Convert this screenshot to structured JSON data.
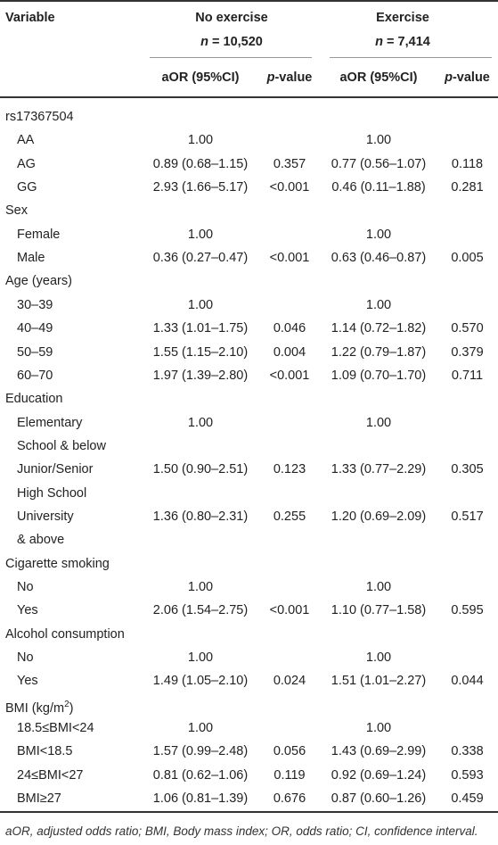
{
  "header": {
    "variable": "Variable",
    "groups": [
      {
        "name": "No exercise",
        "n_prefix": "n",
        "n_value": " = 10,520"
      },
      {
        "name": "Exercise",
        "n_prefix": "n",
        "n_value": " = 7,414"
      }
    ],
    "col_aor": "aOR (95%CI)",
    "col_p_prefix": "p",
    "col_p_suffix": "-value"
  },
  "rows": [
    {
      "type": "cat",
      "label": "rs17367504"
    },
    {
      "type": "sub",
      "label": "AA",
      "a1": "1.00",
      "p1": "",
      "a2": "1.00",
      "p2": ""
    },
    {
      "type": "sub",
      "label": "AG",
      "a1": "0.89 (0.68–1.15)",
      "p1": "0.357",
      "a2": "0.77 (0.56–1.07)",
      "p2": "0.118"
    },
    {
      "type": "sub",
      "label": "GG",
      "a1": "2.93 (1.66–5.17)",
      "p1": "<0.001",
      "a2": "0.46 (0.11–1.88)",
      "p2": "0.281"
    },
    {
      "type": "cat",
      "label": "Sex"
    },
    {
      "type": "sub",
      "label": "Female",
      "a1": "1.00",
      "p1": "",
      "a2": "1.00",
      "p2": ""
    },
    {
      "type": "sub",
      "label": "Male",
      "a1": "0.36 (0.27–0.47)",
      "p1": "<0.001",
      "a2": "0.63 (0.46–0.87)",
      "p2": "0.005"
    },
    {
      "type": "cat",
      "label": "Age (years)"
    },
    {
      "type": "sub",
      "label": "30–39",
      "a1": "1.00",
      "p1": "",
      "a2": "1.00",
      "p2": ""
    },
    {
      "type": "sub",
      "label": "40–49",
      "a1": "1.33 (1.01–1.75)",
      "p1": "0.046",
      "a2": "1.14 (0.72–1.82)",
      "p2": "0.570"
    },
    {
      "type": "sub",
      "label": "50–59",
      "a1": "1.55 (1.15–2.10)",
      "p1": "0.004",
      "a2": "1.22 (0.79–1.87)",
      "p2": "0.379"
    },
    {
      "type": "sub",
      "label": "60–70",
      "a1": "1.97 (1.39–2.80)",
      "p1": "<0.001",
      "a2": "1.09 (0.70–1.70)",
      "p2": "0.711"
    },
    {
      "type": "cat",
      "label": "Education"
    },
    {
      "type": "sub",
      "label": "Elementary",
      "a1": "1.00",
      "p1": "",
      "a2": "1.00",
      "p2": ""
    },
    {
      "type": "cont",
      "label": "School & below"
    },
    {
      "type": "sub",
      "label": "Junior/Senior",
      "a1": "1.50 (0.90–2.51)",
      "p1": "0.123",
      "a2": "1.33 (0.77–2.29)",
      "p2": "0.305"
    },
    {
      "type": "cont",
      "label": "High School"
    },
    {
      "type": "sub",
      "label": "University",
      "a1": "1.36 (0.80–2.31)",
      "p1": "0.255",
      "a2": "1.20 (0.69–2.09)",
      "p2": "0.517"
    },
    {
      "type": "cont",
      "label": "& above"
    },
    {
      "type": "cat",
      "label": "Cigarette smoking"
    },
    {
      "type": "sub",
      "label": "No",
      "a1": "1.00",
      "p1": "",
      "a2": "1.00",
      "p2": ""
    },
    {
      "type": "sub",
      "label": "Yes",
      "a1": "2.06 (1.54–2.75)",
      "p1": "<0.001",
      "a2": "1.10 (0.77–1.58)",
      "p2": "0.595"
    },
    {
      "type": "cat",
      "label": "Alcohol consumption"
    },
    {
      "type": "sub",
      "label": "No",
      "a1": "1.00",
      "p1": "",
      "a2": "1.00",
      "p2": ""
    },
    {
      "type": "sub",
      "label": "Yes",
      "a1": "1.49 (1.05–2.10)",
      "p1": "0.024",
      "a2": "1.51 (1.01–2.27)",
      "p2": "0.044"
    },
    {
      "type": "cat",
      "label": "BMI (kg/m",
      "sup": "2",
      "label_end": ")"
    },
    {
      "type": "sub",
      "label": "18.5≤BMI<24",
      "a1": "1.00",
      "p1": "",
      "a2": "1.00",
      "p2": ""
    },
    {
      "type": "sub",
      "label": "BMI<18.5",
      "a1": "1.57 (0.99–2.48)",
      "p1": "0.056",
      "a2": "1.43 (0.69–2.99)",
      "p2": "0.338"
    },
    {
      "type": "sub",
      "label": "24≤BMI<27",
      "a1": "0.81 (0.62–1.06)",
      "p1": "0.119",
      "a2": "0.92 (0.69–1.24)",
      "p2": "0.593"
    },
    {
      "type": "sub",
      "label": "BMI≥27",
      "a1": "1.06 (0.81–1.39)",
      "p1": "0.676",
      "a2": "0.87 (0.60–1.26)",
      "p2": "0.459"
    }
  ],
  "footnote": "aOR, adjusted odds ratio; BMI, Body mass index; OR, odds ratio; CI, confidence interval."
}
